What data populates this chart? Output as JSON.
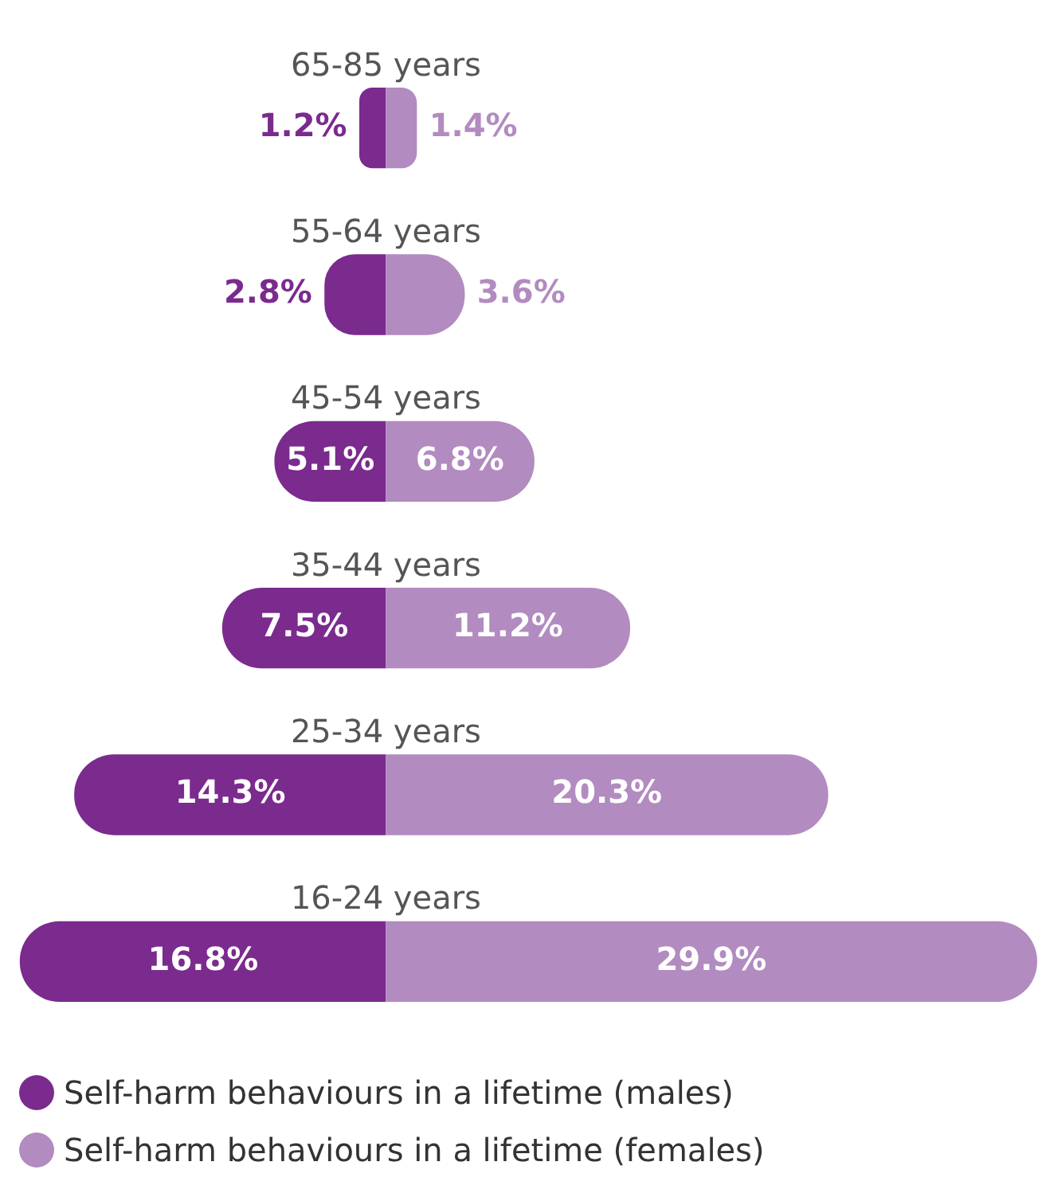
{
  "chart_data": [
    {
      "type": "bar",
      "orientation": "horizontal",
      "categories": [
        "65-85 years",
        "55-64 years",
        "45-54 years",
        "35-44 years",
        "25-34 years",
        "16-24 years"
      ],
      "series": [
        {
          "name": "Self-harm behaviours in a lifetime (males)",
          "color": "#7b2a8e",
          "values": [
            1.2,
            2.8,
            5.1,
            7.5,
            14.3,
            16.8
          ],
          "value_labels": [
            "1.2%",
            "2.8%",
            "5.1%",
            "7.5%",
            "14.3%",
            "16.8%"
          ]
        }
      ],
      "xlim": [
        17,
        0
      ],
      "legend": "bottom"
    },
    {
      "type": "bar",
      "orientation": "horizontal",
      "categories": [
        null,
        null,
        null,
        null,
        null,
        null
      ],
      "series": [
        {
          "name": "Self-harm behaviours in a lifetime (females)",
          "color": "#b28bc0",
          "values": [
            1.4,
            3.6,
            6.8,
            11.2,
            20.3,
            29.9
          ],
          "value_labels": [
            "1.4%",
            "3.6%",
            "6.8%",
            "11.2%",
            "20.3%",
            "29.9%"
          ]
        }
      ],
      "xlim": [
        0,
        30
      ],
      "legend": "bottom"
    }
  ]
}
